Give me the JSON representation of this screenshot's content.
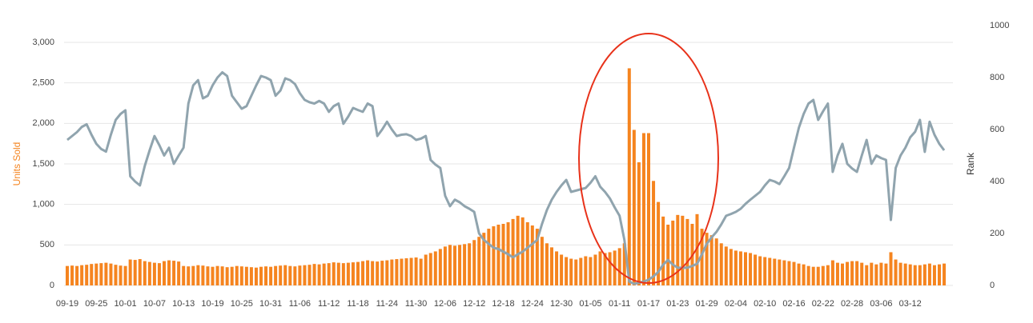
{
  "chart_data": {
    "type": "bar-line",
    "y_label": "Units Sold",
    "y2_label": "Rank",
    "categories": [
      "09-19",
      null,
      null,
      null,
      null,
      null,
      "09-25",
      null,
      null,
      null,
      null,
      null,
      "10-01",
      null,
      null,
      null,
      null,
      null,
      "10-07",
      null,
      null,
      null,
      null,
      null,
      "10-13",
      null,
      null,
      null,
      null,
      null,
      "10-19",
      null,
      null,
      null,
      null,
      null,
      "10-25",
      null,
      null,
      null,
      null,
      null,
      "10-31",
      null,
      null,
      null,
      null,
      null,
      "11-06",
      null,
      null,
      null,
      null,
      null,
      "11-12",
      null,
      null,
      null,
      null,
      null,
      "11-18",
      null,
      null,
      null,
      null,
      null,
      "11-24",
      null,
      null,
      null,
      null,
      null,
      "11-30",
      null,
      null,
      null,
      null,
      null,
      "12-06",
      null,
      null,
      null,
      null,
      null,
      "12-12",
      null,
      null,
      null,
      null,
      null,
      "12-18",
      null,
      null,
      null,
      null,
      null,
      "12-24",
      null,
      null,
      null,
      null,
      null,
      "12-30",
      null,
      null,
      null,
      null,
      null,
      "01-05",
      null,
      null,
      null,
      null,
      null,
      "01-11",
      null,
      null,
      null,
      null,
      null,
      "01-17",
      null,
      null,
      null,
      null,
      null,
      "01-23",
      null,
      null,
      null,
      null,
      null,
      "01-29",
      null,
      null,
      null,
      null,
      null,
      "02-04",
      null,
      null,
      null,
      null,
      null,
      "02-10",
      null,
      null,
      null,
      null,
      null,
      "02-16",
      null,
      null,
      null,
      null,
      null,
      "02-22",
      null,
      null,
      null,
      null,
      null,
      "02-28",
      null,
      null,
      null,
      null,
      null,
      "03-06",
      null,
      null,
      null,
      null,
      null,
      "03-12",
      null,
      null,
      null,
      null,
      null,
      null,
      null
    ],
    "series": [
      {
        "name": "Units Sold",
        "type": "bar",
        "color": "#f5841f",
        "values": [
          240,
          245,
          240,
          250,
          255,
          265,
          270,
          275,
          280,
          270,
          255,
          245,
          240,
          320,
          315,
          325,
          300,
          290,
          280,
          275,
          300,
          310,
          305,
          295,
          240,
          235,
          240,
          250,
          245,
          235,
          230,
          240,
          235,
          225,
          230,
          240,
          235,
          230,
          225,
          220,
          230,
          235,
          230,
          240,
          245,
          250,
          240,
          235,
          245,
          250,
          255,
          265,
          260,
          270,
          275,
          285,
          280,
          275,
          280,
          285,
          290,
          300,
          310,
          300,
          295,
          305,
          310,
          320,
          325,
          330,
          335,
          340,
          345,
          330,
          380,
          400,
          420,
          450,
          480,
          500,
          490,
          500,
          510,
          520,
          560,
          600,
          650,
          700,
          730,
          750,
          760,
          780,
          820,
          860,
          840,
          780,
          740,
          700,
          600,
          520,
          470,
          420,
          380,
          350,
          330,
          320,
          340,
          360,
          350,
          380,
          420,
          400,
          410,
          430,
          460,
          520,
          2680,
          1920,
          1520,
          1880,
          1880,
          1290,
          1030,
          850,
          750,
          800,
          870,
          860,
          820,
          760,
          880,
          700,
          650,
          620,
          580,
          520,
          480,
          450,
          430,
          420,
          410,
          400,
          380,
          360,
          350,
          340,
          330,
          320,
          310,
          300,
          290,
          270,
          260,
          240,
          230,
          230,
          240,
          250,
          310,
          280,
          270,
          290,
          300,
          300,
          280,
          250,
          280,
          260,
          280,
          270,
          410,
          320,
          280,
          270,
          260,
          250,
          250,
          260,
          270,
          250,
          260,
          270
        ]
      },
      {
        "name": "Rank",
        "type": "line",
        "axis": "y2",
        "color": "#90a4ae",
        "values": [
          560,
          575,
          590,
          610,
          620,
          580,
          545,
          525,
          515,
          580,
          637,
          660,
          674,
          420,
          400,
          385,
          460,
          520,
          575,
          540,
          500,
          530,
          468,
          500,
          530,
          700,
          770,
          790,
          720,
          730,
          770,
          800,
          820,
          806,
          730,
          705,
          680,
          690,
          730,
          770,
          806,
          800,
          790,
          730,
          750,
          797,
          790,
          775,
          740,
          714,
          705,
          700,
          710,
          700,
          668,
          690,
          700,
          622,
          650,
          683,
          675,
          668,
          700,
          690,
          575,
          600,
          630,
          600,
          575,
          580,
          582,
          575,
          560,
          565,
          575,
          483,
          465,
          452,
          345,
          305,
          330,
          320,
          305,
          295,
          283,
          200,
          175,
          160,
          145,
          140,
          130,
          120,
          108,
          120,
          130,
          145,
          160,
          175,
          237,
          290,
          330,
          360,
          385,
          406,
          360,
          365,
          370,
          375,
          395,
          420,
          380,
          360,
          335,
          300,
          268,
          175,
          15,
          6,
          10,
          15,
          22,
          35,
          52,
          80,
          98,
          80,
          68,
          68,
          68,
          75,
          83,
          120,
          160,
          185,
          206,
          235,
          268,
          275,
          283,
          295,
          314,
          330,
          345,
          360,
          385,
          406,
          400,
          390,
          420,
          452,
          530,
          606,
          660,
          700,
          714,
          637,
          670,
          700,
          437,
          500,
          545,
          468,
          450,
          437,
          500,
          560,
          468,
          500,
          490,
          483,
          252,
          452,
          500,
          530,
          570,
          591,
          637,
          514,
          630,
          580,
          545,
          520
        ]
      }
    ],
    "ylim": [
      0,
      3000
    ],
    "yticks": [
      0,
      500,
      {
        "value": 1000,
        "label": "1,000"
      },
      {
        "value": 1500,
        "label": "1,500"
      },
      {
        "value": 2000,
        "label": "2,000"
      },
      {
        "value": 2500,
        "label": "2,500"
      },
      {
        "value": 3000,
        "label": "3,000"
      }
    ],
    "y2lim": [
      0,
      1000
    ],
    "y2ticks": [
      0,
      200,
      400,
      600,
      800,
      1000
    ],
    "grid": true
  }
}
